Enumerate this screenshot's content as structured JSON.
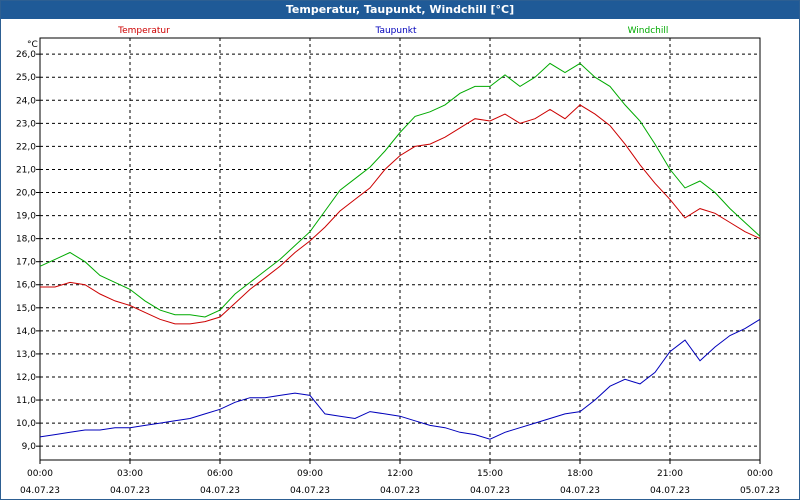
{
  "window": {
    "title": "Temperatur, Taupunkt, Windchill [°C]"
  },
  "chart_data": {
    "type": "line",
    "title": "Temperatur, Taupunkt, Windchill [°C]",
    "ylabel": "°C",
    "ylim": [
      8.4,
      26.7
    ],
    "yticks": [
      "9,0",
      "10,0",
      "11,0",
      "12,0",
      "13,0",
      "14,0",
      "15,0",
      "16,0",
      "17,0",
      "18,0",
      "19,0",
      "20,0",
      "21,0",
      "22,0",
      "23,0",
      "24,0",
      "25,0",
      "26,0"
    ],
    "xlim": [
      0,
      24
    ],
    "xticks": [
      {
        "time": "00:00",
        "date": "04.07.23"
      },
      {
        "time": "03:00",
        "date": "04.07.23"
      },
      {
        "time": "06:00",
        "date": "04.07.23"
      },
      {
        "time": "09:00",
        "date": "04.07.23"
      },
      {
        "time": "12:00",
        "date": "04.07.23"
      },
      {
        "time": "15:00",
        "date": "04.07.23"
      },
      {
        "time": "18:00",
        "date": "04.07.23"
      },
      {
        "time": "21:00",
        "date": "04.07.23"
      },
      {
        "time": "00:00",
        "date": "05.07.23"
      }
    ],
    "grid": true,
    "series": [
      {
        "name": "Temperatur",
        "color": "#cc0000",
        "points": [
          [
            0,
            15.9
          ],
          [
            0.5,
            15.9
          ],
          [
            1,
            16.1
          ],
          [
            1.5,
            16.0
          ],
          [
            2,
            15.6
          ],
          [
            2.5,
            15.3
          ],
          [
            3,
            15.1
          ],
          [
            3.5,
            14.8
          ],
          [
            4,
            14.5
          ],
          [
            4.5,
            14.3
          ],
          [
            5,
            14.3
          ],
          [
            5.5,
            14.4
          ],
          [
            6,
            14.6
          ],
          [
            6.5,
            15.2
          ],
          [
            7,
            15.8
          ],
          [
            7.5,
            16.3
          ],
          [
            8,
            16.8
          ],
          [
            8.5,
            17.4
          ],
          [
            9,
            17.9
          ],
          [
            9.5,
            18.5
          ],
          [
            10,
            19.2
          ],
          [
            10.5,
            19.7
          ],
          [
            11,
            20.2
          ],
          [
            11.5,
            21.0
          ],
          [
            12,
            21.6
          ],
          [
            12.5,
            22.0
          ],
          [
            13,
            22.1
          ],
          [
            13.5,
            22.4
          ],
          [
            14,
            22.8
          ],
          [
            14.5,
            23.2
          ],
          [
            15,
            23.1
          ],
          [
            15.5,
            23.4
          ],
          [
            16,
            23.0
          ],
          [
            16.5,
            23.2
          ],
          [
            17,
            23.6
          ],
          [
            17.5,
            23.2
          ],
          [
            18,
            23.8
          ],
          [
            18.5,
            23.4
          ],
          [
            19,
            22.9
          ],
          [
            19.5,
            22.1
          ],
          [
            20,
            21.2
          ],
          [
            20.5,
            20.4
          ],
          [
            21,
            19.7
          ],
          [
            21.5,
            18.9
          ],
          [
            22,
            19.3
          ],
          [
            22.5,
            19.1
          ],
          [
            23,
            18.7
          ],
          [
            23.5,
            18.3
          ],
          [
            24,
            18.0
          ]
        ]
      },
      {
        "name": "Taupunkt",
        "color": "#0000bb",
        "points": [
          [
            0,
            9.4
          ],
          [
            0.5,
            9.5
          ],
          [
            1,
            9.6
          ],
          [
            1.5,
            9.7
          ],
          [
            2,
            9.7
          ],
          [
            2.5,
            9.8
          ],
          [
            3,
            9.8
          ],
          [
            3.5,
            9.9
          ],
          [
            4,
            10.0
          ],
          [
            4.5,
            10.1
          ],
          [
            5,
            10.2
          ],
          [
            5.5,
            10.4
          ],
          [
            6,
            10.6
          ],
          [
            6.5,
            10.9
          ],
          [
            7,
            11.1
          ],
          [
            7.5,
            11.1
          ],
          [
            8,
            11.2
          ],
          [
            8.5,
            11.3
          ],
          [
            9,
            11.2
          ],
          [
            9.5,
            10.4
          ],
          [
            10,
            10.3
          ],
          [
            10.5,
            10.2
          ],
          [
            11,
            10.5
          ],
          [
            11.5,
            10.4
          ],
          [
            12,
            10.3
          ],
          [
            12.5,
            10.1
          ],
          [
            13,
            9.9
          ],
          [
            13.5,
            9.8
          ],
          [
            14,
            9.6
          ],
          [
            14.5,
            9.5
          ],
          [
            15,
            9.3
          ],
          [
            15.5,
            9.6
          ],
          [
            16,
            9.8
          ],
          [
            16.5,
            10.0
          ],
          [
            17,
            10.2
          ],
          [
            17.5,
            10.4
          ],
          [
            18,
            10.5
          ],
          [
            18.5,
            11.0
          ],
          [
            19,
            11.6
          ],
          [
            19.5,
            11.9
          ],
          [
            20,
            11.7
          ],
          [
            20.5,
            12.2
          ],
          [
            21,
            13.1
          ],
          [
            21.5,
            13.6
          ],
          [
            22,
            12.7
          ],
          [
            22.5,
            13.3
          ],
          [
            23,
            13.8
          ],
          [
            23.5,
            14.1
          ],
          [
            24,
            14.5
          ]
        ]
      },
      {
        "name": "Windchill",
        "color": "#00aa00",
        "points": [
          [
            0,
            16.8
          ],
          [
            0.5,
            17.1
          ],
          [
            1,
            17.4
          ],
          [
            1.5,
            17.0
          ],
          [
            2,
            16.4
          ],
          [
            2.5,
            16.1
          ],
          [
            3,
            15.8
          ],
          [
            3.5,
            15.3
          ],
          [
            4,
            14.9
          ],
          [
            4.5,
            14.7
          ],
          [
            5,
            14.7
          ],
          [
            5.5,
            14.6
          ],
          [
            6,
            14.9
          ],
          [
            6.5,
            15.6
          ],
          [
            7,
            16.1
          ],
          [
            7.5,
            16.6
          ],
          [
            8,
            17.1
          ],
          [
            8.5,
            17.7
          ],
          [
            9,
            18.3
          ],
          [
            9.5,
            19.2
          ],
          [
            10,
            20.1
          ],
          [
            10.5,
            20.6
          ],
          [
            11,
            21.1
          ],
          [
            11.5,
            21.8
          ],
          [
            12,
            22.6
          ],
          [
            12.5,
            23.3
          ],
          [
            13,
            23.5
          ],
          [
            13.5,
            23.8
          ],
          [
            14,
            24.3
          ],
          [
            14.5,
            24.6
          ],
          [
            15,
            24.6
          ],
          [
            15.5,
            25.1
          ],
          [
            16,
            24.6
          ],
          [
            16.5,
            25.0
          ],
          [
            17,
            25.6
          ],
          [
            17.5,
            25.2
          ],
          [
            18,
            25.6
          ],
          [
            18.5,
            25.0
          ],
          [
            19,
            24.6
          ],
          [
            19.5,
            23.8
          ],
          [
            20,
            23.1
          ],
          [
            20.5,
            22.1
          ],
          [
            21,
            21.0
          ],
          [
            21.5,
            20.2
          ],
          [
            22,
            20.5
          ],
          [
            22.5,
            20.0
          ],
          [
            23,
            19.3
          ],
          [
            23.5,
            18.7
          ],
          [
            24,
            18.1
          ]
        ]
      }
    ]
  }
}
